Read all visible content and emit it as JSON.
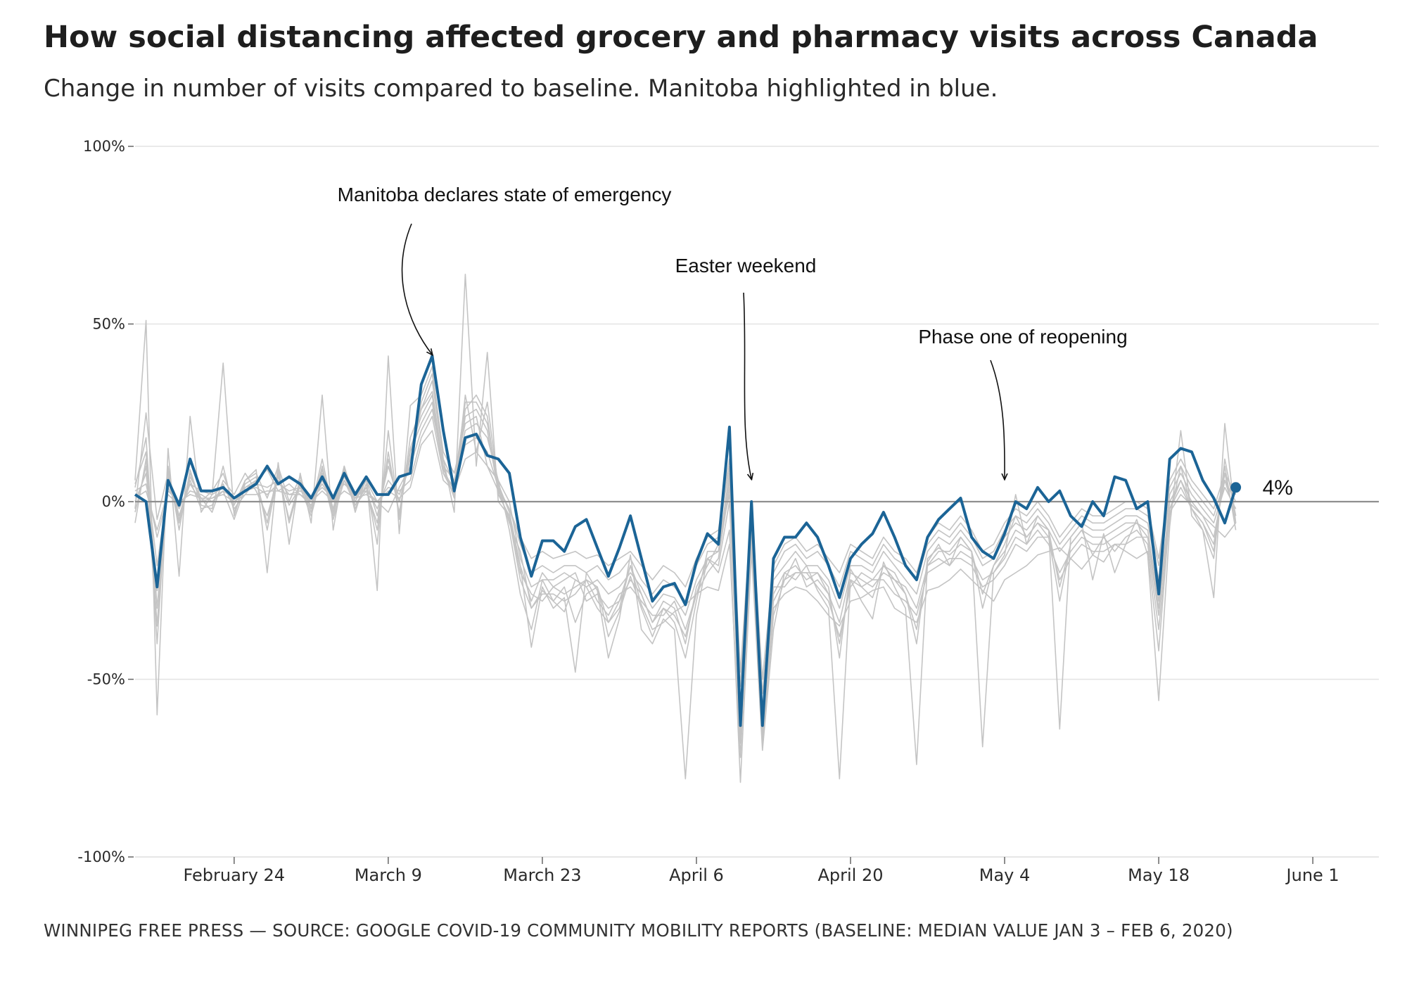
{
  "title": "How social distancing affected grocery and pharmacy visits across Canada",
  "subtitle": "Change in number of visits compared to baseline. Manitoba highlighted in blue.",
  "footer": "WINNIPEG FREE PRESS — SOURCE: GOOGLE COVID-19 COMMUNITY MOBILITY REPORTS (BASELINE: MEDIAN VALUE JAN 3 – FEB 6, 2020)",
  "colors": {
    "highlight": "#1b6496",
    "other": "#c4c4c4",
    "grid": "#e3e3e3",
    "zero": "#8f8f8f"
  },
  "chart_data": {
    "type": "line",
    "title": "How social distancing affected grocery and pharmacy visits across Canada",
    "subtitle": "Change in number of visits compared to baseline. Manitoba highlighted in blue.",
    "x_start": "2020-02-15",
    "x_range": [
      "2020-02-15",
      "2020-06-07"
    ],
    "ylim": [
      -100,
      100
    ],
    "yticks": [
      100,
      50,
      0,
      -50,
      -100
    ],
    "ytick_labels": [
      "100%",
      "50%",
      "0%",
      "-50%",
      "-100%"
    ],
    "xticks": [
      {
        "date": "2020-02-24",
        "label": "February 24"
      },
      {
        "date": "2020-03-09",
        "label": "March  9"
      },
      {
        "date": "2020-03-23",
        "label": "March 23"
      },
      {
        "date": "2020-04-06",
        "label": "April  6"
      },
      {
        "date": "2020-04-20",
        "label": "April 20"
      },
      {
        "date": "2020-05-04",
        "label": "May  4"
      },
      {
        "date": "2020-05-18",
        "label": "May 18"
      },
      {
        "date": "2020-06-01",
        "label": "June  1"
      }
    ],
    "grid": true,
    "highlight_series": {
      "name": "Manitoba",
      "end_label": "4%",
      "values": [
        2,
        0,
        -24,
        6,
        -1,
        12,
        3,
        3,
        4,
        1,
        3,
        5,
        10,
        5,
        7,
        5,
        1,
        7,
        1,
        8,
        2,
        7,
        2,
        2,
        7,
        8,
        33,
        41,
        20,
        3,
        18,
        19,
        13,
        12,
        8,
        -10,
        -21,
        -11,
        -11,
        -14,
        -7,
        -5,
        -13,
        -21,
        -13,
        -4,
        -16,
        -28,
        -24,
        -23,
        -29,
        -17,
        -9,
        -12,
        21,
        -63,
        0,
        -63,
        -16,
        -10,
        -10,
        -6,
        -10,
        -18,
        -27,
        -16,
        -12,
        -9,
        -3,
        -10,
        -18,
        -22,
        -10,
        -5,
        -2,
        1,
        -10,
        -14,
        -16,
        -9,
        0,
        -2,
        4,
        0,
        3,
        -4,
        -7,
        0,
        -4,
        7,
        6,
        -2,
        0,
        -26,
        12,
        15,
        14,
        6,
        1,
        -6,
        4
      ]
    },
    "other_series": [
      {
        "values": [
          -2,
          25,
          -5,
          8,
          -4,
          5,
          0,
          1,
          3,
          -5,
          4,
          6,
          9,
          3,
          5,
          2,
          -1,
          6,
          0,
          7,
          1,
          6,
          0,
          -3,
          4,
          10,
          28,
          36,
          14,
          8,
          22,
          24,
          10,
          6,
          -8,
          -26,
          -36,
          -22,
          -28,
          -31,
          -22,
          -24,
          -30,
          -34,
          -28,
          -18,
          -29,
          -36,
          -34,
          -31,
          -29,
          -26,
          -24,
          -25,
          -12,
          -72,
          -10,
          -66,
          -30,
          -26,
          -24,
          -25,
          -28,
          -32,
          -35,
          -28,
          -27,
          -25,
          -24,
          -30,
          -32,
          -34,
          -25,
          -24,
          -22,
          -19,
          -22,
          -25,
          -28,
          -22,
          -20,
          -18,
          -15,
          -14,
          -13,
          -16,
          -19,
          -15,
          -17,
          -12,
          -14,
          -16,
          -14,
          -42,
          -3,
          2,
          -1,
          -4,
          -7,
          -10,
          -6
        ]
      },
      {
        "values": [
          6,
          51,
          -60,
          15,
          -21,
          24,
          -3,
          2,
          39,
          -4,
          6,
          9,
          -20,
          11,
          -12,
          8,
          -6,
          30,
          -8,
          10,
          -3,
          7,
          -25,
          41,
          -9,
          27,
          30,
          38,
          12,
          -3,
          64,
          10,
          42,
          0,
          -4,
          -18,
          -41,
          -24,
          -30,
          -27,
          -48,
          -20,
          -25,
          -44,
          -33,
          -15,
          -36,
          -40,
          -33,
          -36,
          -78,
          -32,
          -16,
          -20,
          -8,
          -79,
          -14,
          -70,
          -36,
          -20,
          -22,
          -18,
          -25,
          -30,
          -78,
          -22,
          -28,
          -33,
          -17,
          -24,
          -30,
          -74,
          -17,
          -12,
          -18,
          -10,
          -14,
          -69,
          -20,
          -15,
          2,
          -12,
          -4,
          -8,
          -64,
          -10,
          -6,
          -22,
          -9,
          -20,
          -12,
          -5,
          -15,
          -56,
          -7,
          20,
          -4,
          -8,
          -27,
          22,
          -6
        ]
      },
      {
        "values": [
          -6,
          12,
          -40,
          10,
          -8,
          9,
          -1,
          -2,
          10,
          -3,
          5,
          7,
          -8,
          8,
          -5,
          6,
          -2,
          12,
          -3,
          9,
          -2,
          5,
          -12,
          20,
          -5,
          18,
          26,
          31,
          10,
          1,
          30,
          14,
          28,
          4,
          -6,
          -14,
          -30,
          -25,
          -28,
          -24,
          -34,
          -26,
          -24,
          -38,
          -31,
          -21,
          -30,
          -38,
          -30,
          -34,
          -44,
          -28,
          -14,
          -14,
          6,
          -66,
          -8,
          -64,
          -26,
          -20,
          -18,
          -22,
          -20,
          -24,
          -44,
          -19,
          -24,
          -27,
          -18,
          -22,
          -26,
          -40,
          -16,
          -13,
          -15,
          -12,
          -14,
          -30,
          -18,
          -12,
          -4,
          -10,
          -6,
          -10,
          -28,
          -12,
          -8,
          -15,
          -10,
          -14,
          -10,
          -8,
          -12,
          -36,
          -4,
          10,
          -2,
          -6,
          -14,
          10,
          -8
        ]
      },
      {
        "values": [
          4,
          18,
          -30,
          6,
          -5,
          7,
          1,
          -3,
          6,
          2,
          8,
          3,
          -4,
          7,
          -1,
          4,
          -4,
          8,
          -5,
          6,
          -1,
          3,
          -6,
          12,
          -3,
          14,
          22,
          28,
          8,
          2,
          26,
          30,
          24,
          2,
          -4,
          -20,
          -26,
          -28,
          -24,
          -22,
          -20,
          -28,
          -26,
          -30,
          -28,
          -22,
          -26,
          -34,
          -28,
          -30,
          -40,
          -24,
          -18,
          -12,
          2,
          -58,
          -12,
          -58,
          -28,
          -22,
          -16,
          -24,
          -22,
          -26,
          -34,
          -20,
          -22,
          -24,
          -20,
          -22,
          -24,
          -30,
          -18,
          -16,
          -18,
          -14,
          -16,
          -22,
          -20,
          -16,
          -10,
          -12,
          -8,
          -12,
          -20,
          -14,
          -10,
          -12,
          -12,
          -10,
          -8,
          -6,
          -8,
          -28,
          0,
          6,
          0,
          -4,
          -10,
          6,
          -4
        ]
      },
      {
        "values": [
          0,
          8,
          -18,
          4,
          -2,
          5,
          3,
          2,
          4,
          0,
          3,
          4,
          2,
          5,
          3,
          4,
          0,
          5,
          0,
          6,
          1,
          4,
          -2,
          6,
          2,
          10,
          20,
          26,
          10,
          6,
          20,
          22,
          18,
          6,
          0,
          -16,
          -24,
          -22,
          -22,
          -20,
          -22,
          -24,
          -22,
          -26,
          -24,
          -20,
          -24,
          -30,
          -26,
          -27,
          -32,
          -22,
          -16,
          -14,
          8,
          -60,
          -6,
          -60,
          -22,
          -18,
          -14,
          -18,
          -18,
          -22,
          -30,
          -18,
          -18,
          -20,
          -14,
          -18,
          -22,
          -26,
          -14,
          -10,
          -12,
          -8,
          -12,
          -18,
          -16,
          -10,
          -6,
          -8,
          -4,
          -8,
          -14,
          -10,
          -6,
          -8,
          -8,
          -6,
          -4,
          -4,
          -6,
          -22,
          2,
          8,
          2,
          -2,
          -6,
          4,
          -2
        ]
      },
      {
        "values": [
          3,
          5,
          -10,
          2,
          -1,
          3,
          2,
          0,
          3,
          1,
          4,
          5,
          4,
          6,
          2,
          3,
          1,
          4,
          1,
          5,
          2,
          3,
          0,
          4,
          3,
          6,
          18,
          24,
          8,
          4,
          16,
          18,
          14,
          4,
          -2,
          -12,
          -20,
          -18,
          -20,
          -18,
          -18,
          -20,
          -18,
          -22,
          -20,
          -16,
          -22,
          -26,
          -22,
          -24,
          -28,
          -18,
          -12,
          -10,
          10,
          -52,
          -4,
          -54,
          -20,
          -14,
          -12,
          -16,
          -14,
          -18,
          -24,
          -14,
          -16,
          -18,
          -12,
          -16,
          -18,
          -22,
          -12,
          -8,
          -10,
          -6,
          -10,
          -16,
          -14,
          -8,
          -4,
          -6,
          -2,
          -6,
          -12,
          -8,
          -4,
          -6,
          -6,
          -4,
          -2,
          -2,
          -4,
          -18,
          4,
          10,
          4,
          0,
          -4,
          6,
          0
        ]
      },
      {
        "values": [
          -3,
          10,
          -25,
          7,
          -4,
          6,
          -2,
          -1,
          5,
          -2,
          2,
          6,
          -6,
          9,
          -6,
          5,
          -3,
          10,
          -4,
          8,
          -1,
          4,
          -8,
          14,
          -4,
          15,
          24,
          30,
          9,
          3,
          24,
          26,
          20,
          3,
          -5,
          -22,
          -30,
          -26,
          -26,
          -28,
          -26,
          -22,
          -28,
          -32,
          -26,
          -24,
          -28,
          -32,
          -32,
          -28,
          -36,
          -26,
          -20,
          -16,
          4,
          -62,
          -8,
          -62,
          -24,
          -24,
          -20,
          -20,
          -24,
          -28,
          -38,
          -24,
          -20,
          -22,
          -22,
          -26,
          -28,
          -32,
          -20,
          -18,
          -16,
          -16,
          -18,
          -24,
          -22,
          -18,
          -12,
          -14,
          -10,
          -10,
          -22,
          -16,
          -12,
          -14,
          -14,
          -12,
          -12,
          -10,
          -10,
          -30,
          -2,
          6,
          -2,
          -6,
          -12,
          8,
          -6
        ]
      },
      {
        "values": [
          5,
          14,
          -35,
          9,
          -6,
          8,
          0,
          3,
          8,
          -1,
          6,
          8,
          1,
          10,
          0,
          7,
          -2,
          9,
          -2,
          10,
          0,
          6,
          -4,
          10,
          0,
          12,
          26,
          34,
          12,
          5,
          28,
          28,
          22,
          5,
          -3,
          -18,
          -28,
          -20,
          -24,
          -26,
          -24,
          -22,
          -24,
          -34,
          -30,
          -18,
          -26,
          -34,
          -30,
          -32,
          -38,
          -26,
          -16,
          -18,
          0,
          -68,
          -10,
          -68,
          -32,
          -22,
          -20,
          -20,
          -20,
          -26,
          -40,
          -22,
          -24,
          -22,
          -18,
          -20,
          -26,
          -36,
          -18,
          -14,
          -14,
          -10,
          -14,
          -26,
          -18,
          -14,
          -8,
          -10,
          -6,
          -8,
          -24,
          -12,
          -8,
          -10,
          -10,
          -8,
          -6,
          -6,
          -10,
          -32,
          -2,
          4,
          -2,
          -8,
          -16,
          12,
          -4
        ]
      },
      {
        "values": [
          1,
          3,
          -8,
          3,
          0,
          2,
          1,
          1,
          2,
          0,
          2,
          2,
          3,
          3,
          2,
          2,
          0,
          3,
          0,
          3,
          1,
          2,
          0,
          3,
          1,
          4,
          16,
          20,
          6,
          3,
          12,
          14,
          10,
          3,
          -2,
          -10,
          -16,
          -14,
          -16,
          -15,
          -14,
          -16,
          -15,
          -18,
          -16,
          -14,
          -18,
          -22,
          -18,
          -20,
          -24,
          -16,
          -10,
          -8,
          12,
          -48,
          -2,
          -50,
          -18,
          -12,
          -10,
          -14,
          -12,
          -16,
          -20,
          -12,
          -14,
          -16,
          -10,
          -14,
          -16,
          -20,
          -10,
          -6,
          -8,
          -4,
          -8,
          -14,
          -12,
          -6,
          -2,
          -4,
          0,
          -4,
          -10,
          -6,
          -2,
          -4,
          -4,
          -2,
          0,
          0,
          -2,
          -16,
          6,
          12,
          6,
          2,
          -2,
          8,
          2
        ]
      }
    ],
    "annotations": [
      {
        "text": "Manitoba declares state of emergency",
        "date": "2020-03-13",
        "value": 39
      },
      {
        "text": "Easter weekend",
        "date": "2020-04-11",
        "value": 4
      },
      {
        "text": "Phase one of reopening",
        "date": "2020-05-04",
        "value": 4
      }
    ]
  }
}
